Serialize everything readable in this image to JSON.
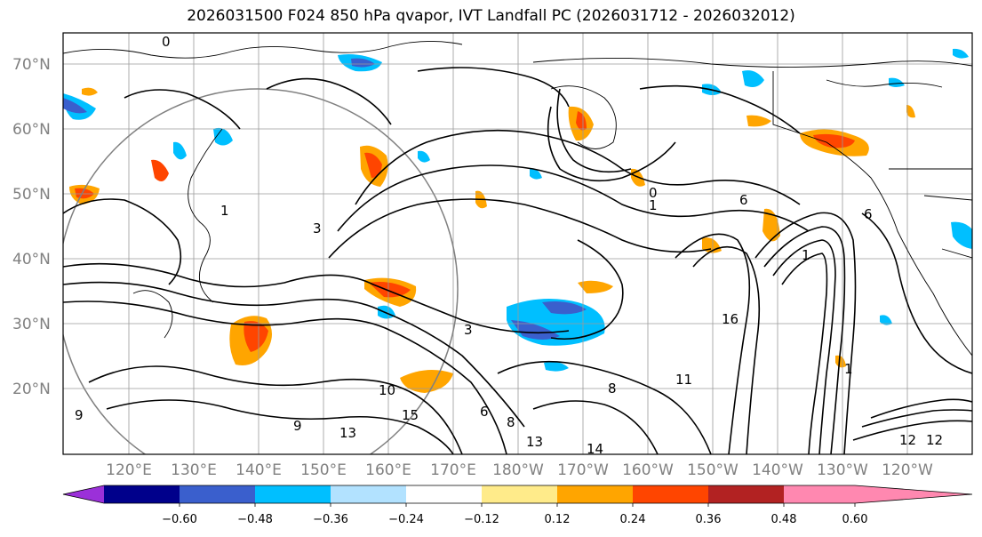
{
  "title": "2026031500 F024 850 hPa qvapor, IVT Landfall PC (2026031712 - 2026032012)",
  "lat_labels": [
    "70°N",
    "60°N",
    "50°N",
    "40°N",
    "30°N",
    "20°N"
  ],
  "lon_labels": [
    "120°E",
    "130°E",
    "140°E",
    "150°E",
    "160°E",
    "170°E",
    "180°W",
    "170°W",
    "160°W",
    "150°W",
    "140°W",
    "130°W",
    "120°W"
  ],
  "colorbar": {
    "colors": [
      "#9b30d9",
      "#00008b",
      "#3a5fcd",
      "#00bfff",
      "#b2e2ff",
      "#ffffff",
      "#ffeb8a",
      "#ffa500",
      "#ff4500",
      "#b22222",
      "#ff88b0"
    ],
    "tick_labels": [
      "−0.60",
      "−0.48",
      "−0.36",
      "−0.24",
      "−0.12",
      "0.12",
      "0.24",
      "0.36",
      "0.48",
      "0.60"
    ]
  },
  "contour_labels": [
    "0",
    "1",
    "3",
    "6",
    "8",
    "9",
    "10",
    "11",
    "12",
    "13",
    "14",
    "15",
    "16",
    "1",
    "0",
    "6",
    "3",
    "1",
    "6",
    "9",
    "1",
    "13",
    "8",
    "12"
  ]
}
